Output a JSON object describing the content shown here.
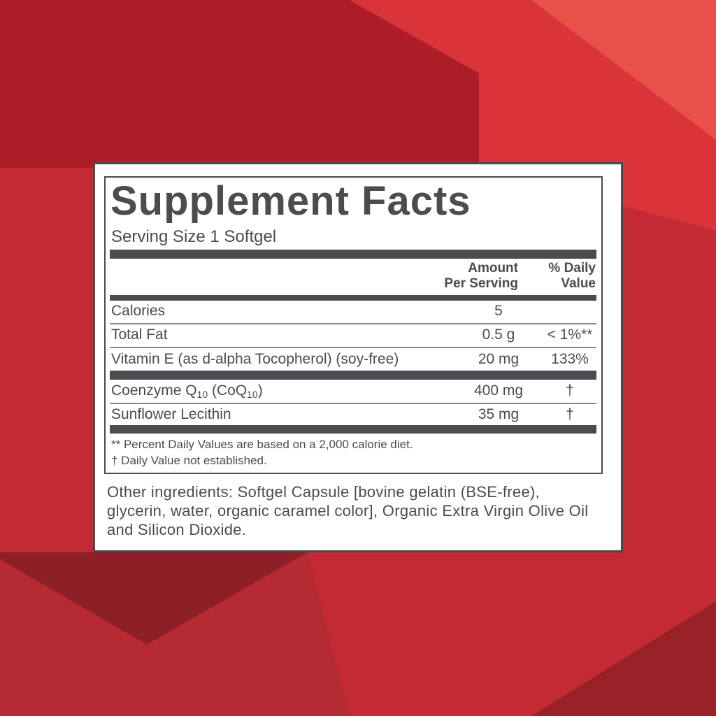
{
  "colors": {
    "background": "#c42a33",
    "ink": "#4b4b50"
  },
  "label": {
    "title": "Supplement Facts",
    "serving_size": "Serving Size 1 Softgel",
    "header": {
      "amount_line1": "Amount",
      "amount_line2": "Per Serving",
      "dv_line1": "% Daily",
      "dv_line2": "Value"
    },
    "rows": [
      {
        "name": "Calories",
        "amount": "5",
        "dv": ""
      },
      {
        "name": "Total Fat",
        "amount": "0.5 g",
        "dv": "< 1%**"
      },
      {
        "name": "Vitamin E (as d-alpha Tocopherol) (soy-free)",
        "amount": "20 mg",
        "dv": "133%"
      },
      {
        "name_parts": [
          "Coenzyme Q",
          "10",
          " (CoQ",
          "10",
          ")"
        ],
        "amount": "400 mg",
        "dv": "†"
      },
      {
        "name": "Sunflower Lecithin",
        "amount": "35 mg",
        "dv": "†"
      }
    ],
    "footnotes": [
      "** Percent Daily Values are based on a 2,000 calorie diet.",
      "† Daily Value not established."
    ],
    "other_ingredients": "Other ingredients: Softgel Capsule [bovine gelatin (BSE-free), glycerin, water, organic caramel color], Organic Extra Virgin Olive Oil and Silicon Dioxide."
  }
}
